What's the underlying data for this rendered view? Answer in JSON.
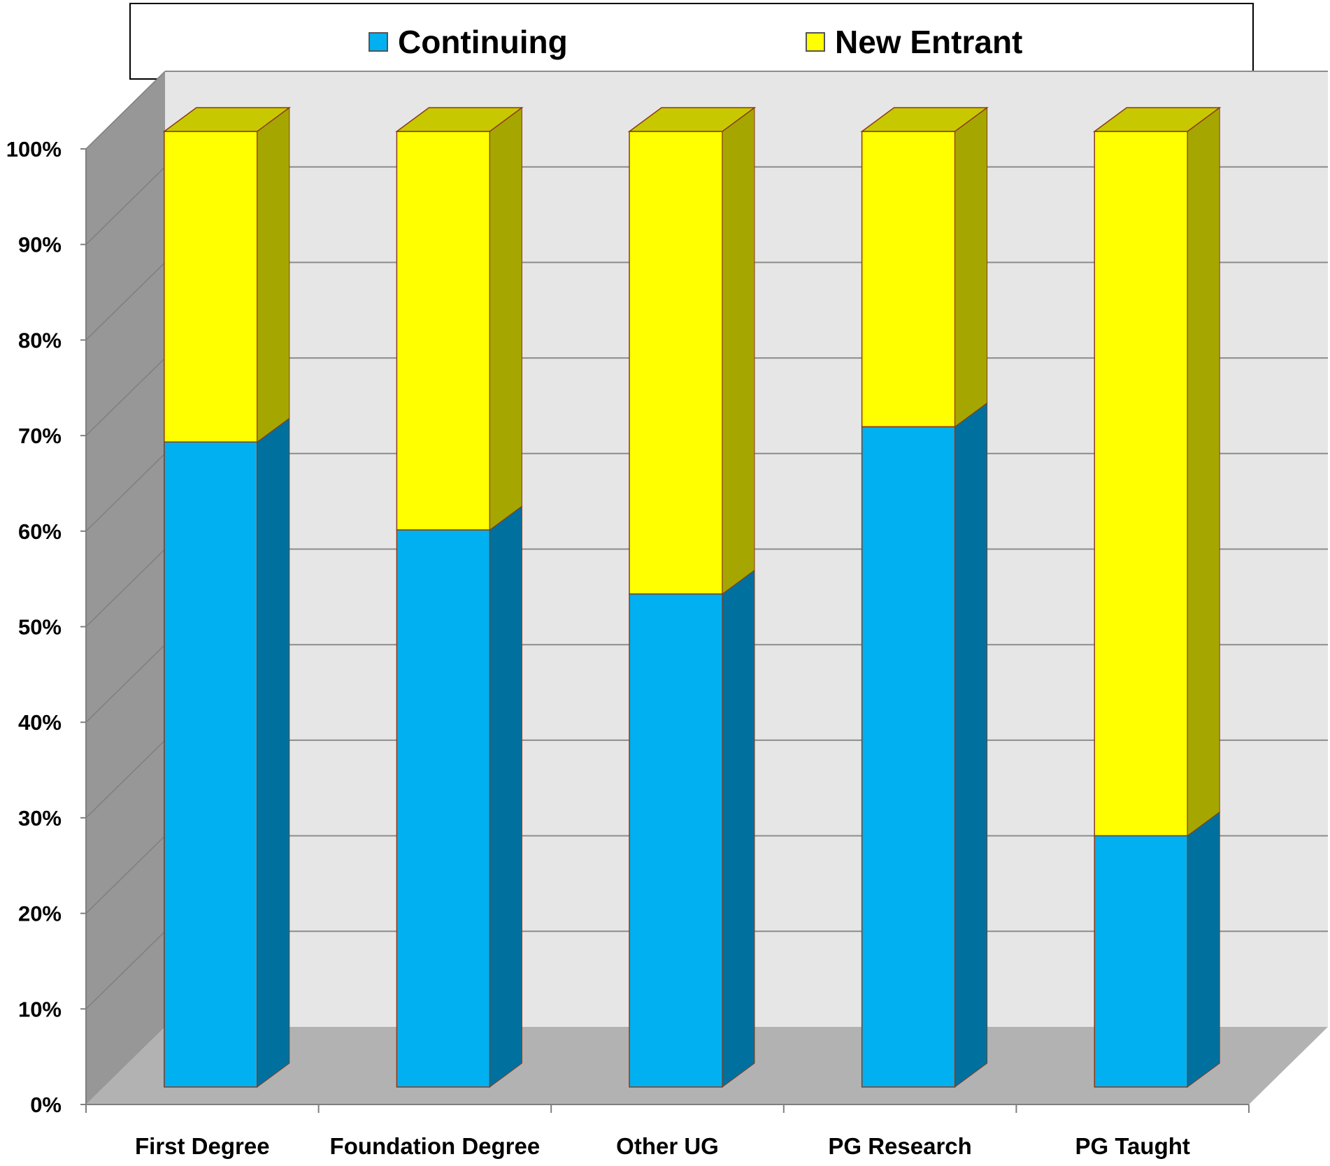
{
  "chart_data": {
    "type": "bar",
    "stacked": true,
    "percent_stacked": true,
    "three_d": true,
    "categories": [
      "First Degree",
      "Foundation Degree",
      "Other UG",
      "PG Research",
      "PG Taught"
    ],
    "series": [
      {
        "name": "Continuing",
        "values": [
          67.5,
          58.3,
          51.6,
          69.1,
          26.3
        ],
        "color": "#00b0f0",
        "side_color": "#00709f"
      },
      {
        "name": "New Entrant",
        "values": [
          32.5,
          41.7,
          48.4,
          30.9,
          73.7
        ],
        "color": "#ffff00",
        "side_color": "#a6a600"
      }
    ],
    "y_ticks": [
      "0%",
      "10%",
      "20%",
      "30%",
      "40%",
      "50%",
      "60%",
      "70%",
      "80%",
      "90%",
      "100%"
    ],
    "ylim": [
      0,
      100
    ],
    "grid": true,
    "legend_position": "top"
  },
  "legend": {
    "items": [
      {
        "label": "Continuing",
        "color": "#00b0f0"
      },
      {
        "label": "New Entrant",
        "color": "#ffff00"
      }
    ]
  }
}
